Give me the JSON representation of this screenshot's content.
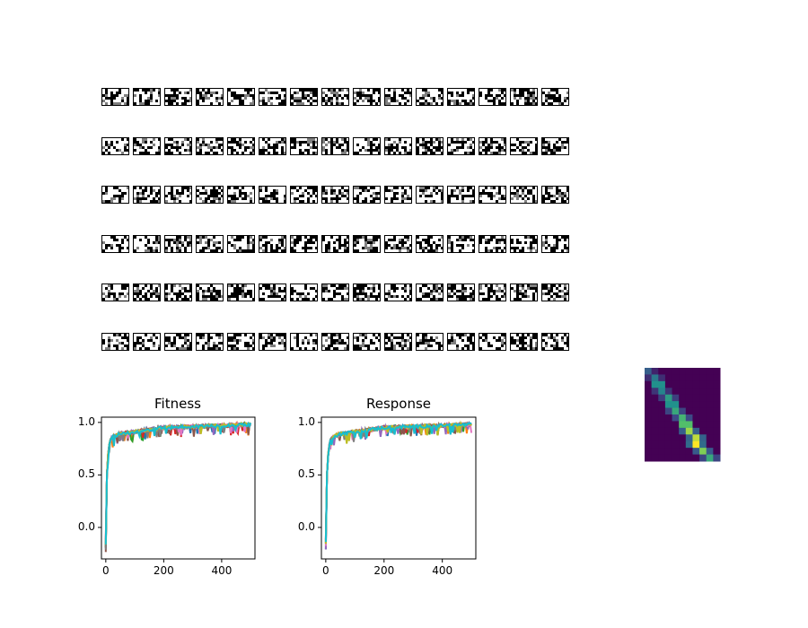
{
  "figure": {
    "grid_rows": 6,
    "grid_cols": 15,
    "tile_cells_x": 10,
    "tile_cells_y": 6,
    "tile_palette": [
      "#000000",
      "#808080",
      "#ffffff"
    ]
  },
  "chart_data": [
    {
      "type": "line",
      "title": "Fitness",
      "xlabel": "",
      "ylabel": "",
      "xlim": [
        -15,
        515
      ],
      "ylim": [
        -0.3,
        1.05
      ],
      "xticks": [
        "0",
        "200",
        "400"
      ],
      "xtick_values": [
        0,
        200,
        400
      ],
      "yticks": [
        "0.0",
        "0.5",
        "1.0"
      ],
      "ytick_values": [
        0.0,
        0.5,
        1.0
      ],
      "grid": false,
      "series_count": 10,
      "series_colors": [
        "#1f77b4",
        "#ff7f0e",
        "#2ca02c",
        "#d62728",
        "#9467bd",
        "#8c564b",
        "#e377c2",
        "#7f7f7f",
        "#bcbd22",
        "#17becf"
      ],
      "x": [
        0,
        2,
        5,
        10,
        15,
        20,
        30,
        50,
        100,
        150,
        200,
        300,
        400,
        500
      ],
      "mean_curve": [
        -0.2,
        0.3,
        0.6,
        0.75,
        0.82,
        0.85,
        0.87,
        0.89,
        0.91,
        0.93,
        0.95,
        0.96,
        0.97,
        0.98
      ]
    },
    {
      "type": "line",
      "title": "Response",
      "xlabel": "",
      "ylabel": "",
      "xlim": [
        -15,
        515
      ],
      "ylim": [
        -0.3,
        1.05
      ],
      "xticks": [
        "0",
        "200",
        "400"
      ],
      "xtick_values": [
        0,
        200,
        400
      ],
      "yticks": [
        "0.0",
        "0.5",
        "1.0"
      ],
      "ytick_values": [
        0.0,
        0.5,
        1.0
      ],
      "grid": false,
      "series_count": 10,
      "series_colors": [
        "#1f77b4",
        "#ff7f0e",
        "#2ca02c",
        "#d62728",
        "#9467bd",
        "#8c564b",
        "#e377c2",
        "#7f7f7f",
        "#bcbd22",
        "#17becf"
      ],
      "x": [
        0,
        2,
        5,
        10,
        15,
        20,
        30,
        50,
        100,
        150,
        200,
        300,
        400,
        500
      ],
      "mean_curve": [
        -0.2,
        0.3,
        0.6,
        0.75,
        0.82,
        0.85,
        0.87,
        0.89,
        0.91,
        0.93,
        0.95,
        0.96,
        0.97,
        0.98
      ]
    },
    {
      "type": "heatmap",
      "title": "",
      "rows": 14,
      "cols": 11,
      "colormap": [
        "#440154",
        "#3b528b",
        "#21918c",
        "#5ec962",
        "#fde725"
      ],
      "band_peak_values": [
        0.3,
        0.4,
        0.5,
        0.45,
        0.55,
        0.5,
        0.6,
        0.65,
        0.7,
        0.85,
        0.9,
        1.0,
        0.8,
        0.6
      ]
    }
  ]
}
